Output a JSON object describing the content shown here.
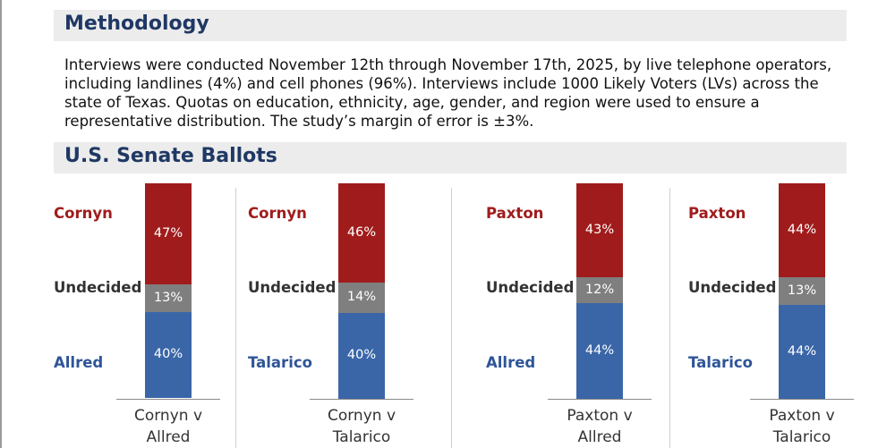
{
  "methodology": {
    "title": "Methodology",
    "lines": [
      "Interviews were conducted November 12th through November 17th, 2025, by live telephone operators,",
      "including landlines (4%) and cell phones (96%). Interviews include 1000 Likely Voters (LVs) across the",
      "state of Texas. Quotas on education, ethnicity, age, gender, and region were used to ensure a",
      "representative distribution. The study’s margin of error is ±3%."
    ]
  },
  "senate": {
    "title": "U.S. Senate Ballots"
  },
  "colors": {
    "red": "#a01c1c",
    "gray": "#7f7f7f",
    "blue": "#3a66a8"
  },
  "chart_data": [
    {
      "type": "bar",
      "stacked": true,
      "category": [
        "Cornyn v",
        "Allred"
      ],
      "series": [
        {
          "name": "Cornyn",
          "value": 47
        },
        {
          "name": "Undecided",
          "value": 13
        },
        {
          "name": "Allred",
          "value": 40
        }
      ],
      "labels": [
        "47%",
        "13%",
        "40%"
      ]
    },
    {
      "type": "bar",
      "stacked": true,
      "category": [
        "Cornyn v",
        "Talarico"
      ],
      "series": [
        {
          "name": "Cornyn",
          "value": 46
        },
        {
          "name": "Undecided",
          "value": 14
        },
        {
          "name": "Talarico",
          "value": 40
        }
      ],
      "labels": [
        "46%",
        "14%",
        "40%"
      ]
    },
    {
      "type": "bar",
      "stacked": true,
      "category": [
        "Paxton v",
        "Allred"
      ],
      "series": [
        {
          "name": "Paxton",
          "value": 43
        },
        {
          "name": "Undecided",
          "value": 12
        },
        {
          "name": "Allred",
          "value": 44
        }
      ],
      "labels": [
        "43%",
        "12%",
        "44%"
      ]
    },
    {
      "type": "bar",
      "stacked": true,
      "category": [
        "Paxton v",
        "Talarico"
      ],
      "series": [
        {
          "name": "Paxton",
          "value": 44
        },
        {
          "name": "Undecided",
          "value": 13
        },
        {
          "name": "Talarico",
          "value": 44
        }
      ],
      "labels": [
        "44%",
        "13%",
        "44%"
      ]
    }
  ]
}
